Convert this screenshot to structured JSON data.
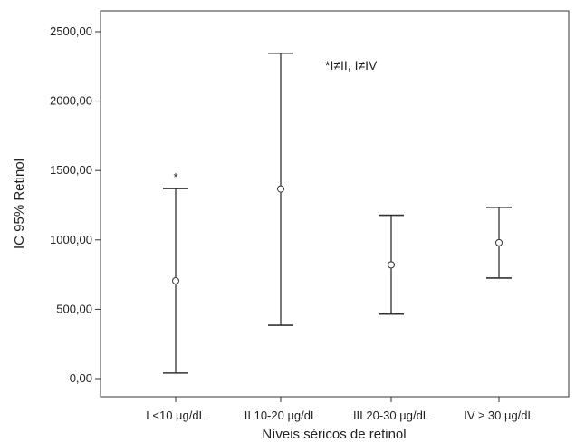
{
  "chart_data": {
    "type": "errorbar",
    "title": "",
    "xlabel": "Níveis séricos de retinol",
    "ylabel": "IC 95% Retinol",
    "ylim": [
      -100,
      2650
    ],
    "yticks": [
      0,
      500,
      1000,
      1500,
      2000,
      2500
    ],
    "ytick_labels": [
      "0,00",
      "500,00",
      "1000,00",
      "1500,00",
      "2000,00",
      "2500,00"
    ],
    "grid": false,
    "categories": [
      "I <10 µg/dL",
      "II 10-20 µg/dL",
      "III 20-30 µg/dL",
      "IV ≥ 30 µg/dL"
    ],
    "series": [
      {
        "mean": [
          705,
          1367,
          820,
          980
        ],
        "lower": [
          40,
          385,
          465,
          725
        ],
        "upper": [
          1370,
          2345,
          1178,
          1235
        ]
      }
    ],
    "marks": [
      "*",
      "",
      "",
      ""
    ],
    "annotation": "*I≠II, I≠IV"
  }
}
